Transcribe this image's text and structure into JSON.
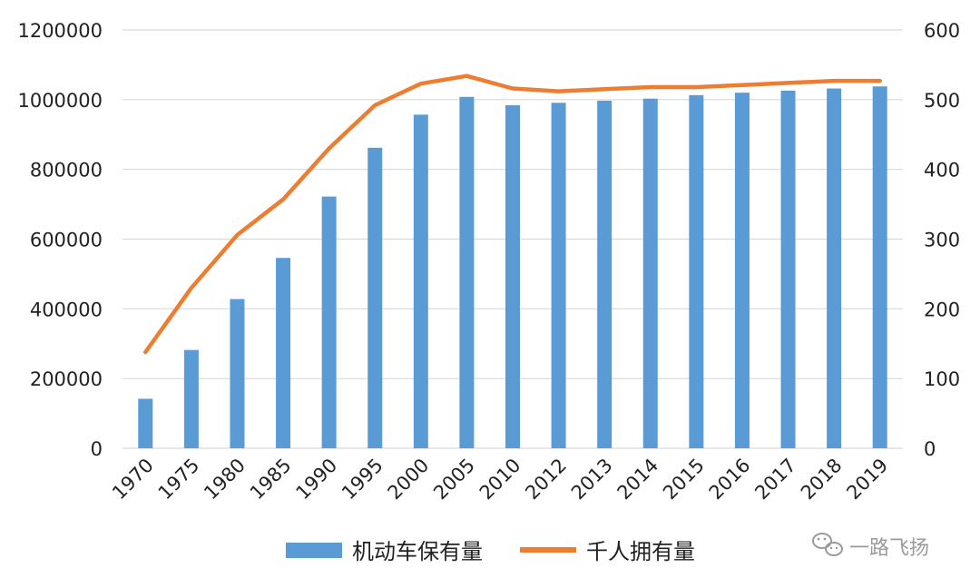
{
  "chart_data": {
    "type": "bar+line",
    "categories": [
      "1970",
      "1975",
      "1980",
      "1985",
      "1990",
      "1995",
      "2000",
      "2005",
      "2010",
      "2012",
      "2013",
      "2014",
      "2015",
      "2016",
      "2017",
      "2018",
      "2019"
    ],
    "series": [
      {
        "name": "机动车保有量",
        "type": "bar",
        "axis": "left",
        "color": "#5B9BD5",
        "values": [
          142000,
          282000,
          428000,
          546000,
          722000,
          862000,
          957000,
          1008000,
          984000,
          991000,
          997000,
          1003000,
          1013000,
          1020000,
          1026000,
          1032000,
          1038000
        ]
      },
      {
        "name": "千人拥有量",
        "type": "line",
        "axis": "right",
        "color": "#ED7D31",
        "values": [
          138,
          230,
          306,
          357,
          430,
          492,
          523,
          534,
          516,
          512,
          515,
          518,
          518,
          521,
          524,
          527,
          527
        ]
      }
    ],
    "yleft_ticks": [
      "0",
      "200000",
      "400000",
      "600000",
      "800000",
      "1000000",
      "1200000"
    ],
    "yleft_lim": [
      0,
      1200000
    ],
    "yright_ticks": [
      "0",
      "100",
      "200",
      "300",
      "400",
      "500",
      "600"
    ],
    "yright_lim": [
      0,
      600
    ],
    "grid": true,
    "legend_position": "bottom"
  },
  "watermark": {
    "icon": "wechat-icon",
    "text": "一路飞扬"
  }
}
